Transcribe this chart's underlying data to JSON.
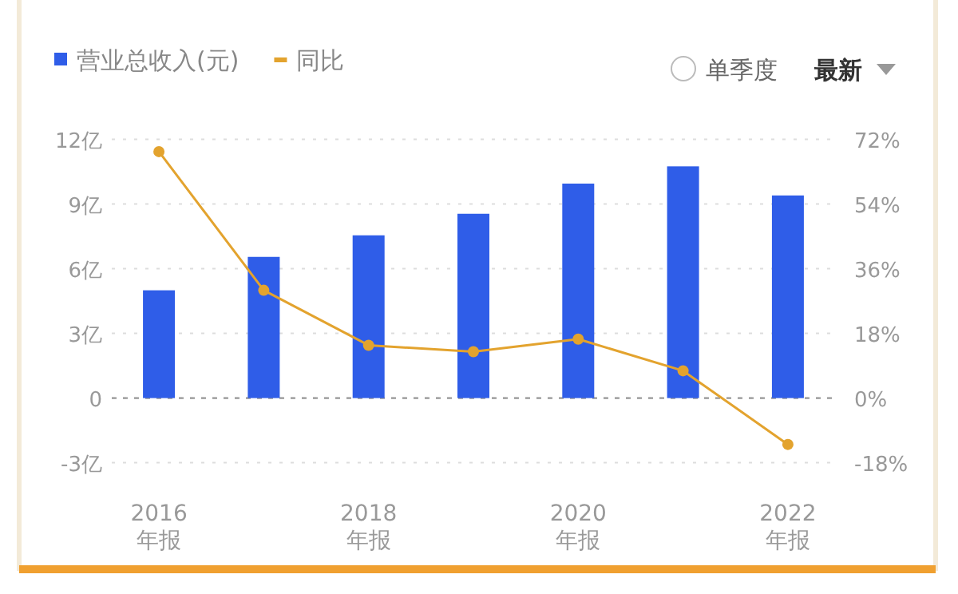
{
  "chart_data": {
    "type": "bar",
    "categories": [
      "2016\n年报",
      null,
      "2018\n年报",
      null,
      "2020\n年报",
      null,
      "2022\n年报"
    ],
    "series": [
      {
        "name": "营业总收入(元)",
        "color": "#2f5de8",
        "values": [
          5.0,
          6.55,
          7.55,
          8.55,
          9.95,
          10.75,
          9.4
        ]
      },
      {
        "name": "同比",
        "type": "line",
        "axis": "y2",
        "color": "#e3a32e",
        "values": [
          68.6,
          30.0,
          14.7,
          12.9,
          16.4,
          7.6,
          -12.9
        ]
      }
    ],
    "ylim": [
      -3,
      12
    ],
    "yticks": [
      {
        "value": -3,
        "label": "-3亿"
      },
      0,
      {
        "value": 3,
        "label": "3亿"
      },
      {
        "value": 6,
        "label": "6亿"
      },
      {
        "value": 9,
        "label": "9亿"
      },
      {
        "value": 12,
        "label": "12亿"
      }
    ],
    "y2lim": [
      -18,
      72
    ],
    "y2ticks": [
      {
        "value": -18,
        "label": "-18%"
      },
      {
        "value": 0,
        "label": "0%"
      },
      {
        "value": 18,
        "label": "18%"
      },
      {
        "value": 36,
        "label": "36%"
      },
      {
        "value": 54,
        "label": "54%"
      },
      {
        "value": 72,
        "label": "72%"
      }
    ],
    "grid": "y",
    "ref_lines": [
      {
        "axis": "y",
        "value": 0,
        "color": "#999999",
        "line_style": "dotted"
      }
    ],
    "legend": "top left",
    "marker": "circle",
    "annotations": [
      "单季度",
      "最新"
    ]
  }
}
